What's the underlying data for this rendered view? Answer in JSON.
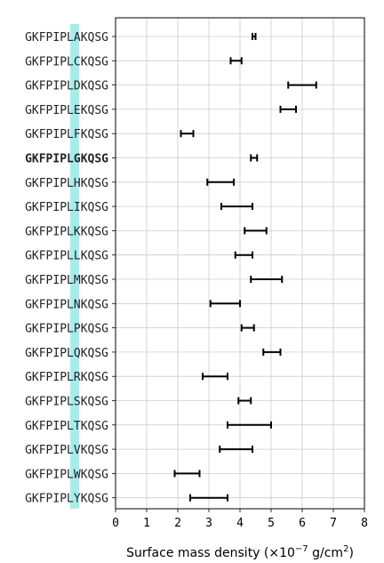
{
  "chart_data": {
    "type": "errorbar",
    "title": "",
    "xlabel": "Surface mass density (×10",
    "xlabel_exp": "−7",
    "xlabel_unit": " g/cm",
    "xlabel_unit_exp": "2",
    "xlabel_close": ")",
    "xlim": [
      0,
      8
    ],
    "xticks": [
      0,
      1,
      2,
      3,
      4,
      5,
      6,
      7,
      8
    ],
    "grid": true,
    "highlight": "GKFPIPLGKQSG",
    "highlight_color": "#a8ecea",
    "bar_color": "#000000",
    "grid_color": "#cccccc",
    "categories": [
      "GKFPIPLAKQSG",
      "GKFPIPLCKQSG",
      "GKFPIPLDKQSG",
      "GKFPIPLEKQSG",
      "GKFPIPLFKQSG",
      "GKFPIPLGKQSG",
      "GKFPIPLHKQSG",
      "GKFPIPLIKQSG",
      "GKFPIPLKKQSG",
      "GKFPIPLLKQSG",
      "GKFPIPLMKQSG",
      "GKFPIPLNKQSG",
      "GKFPIPLPKQSG",
      "GKFPIPLQKQSG",
      "GKFPIPLRKQSG",
      "GKFPIPLSKQSG",
      "GKFPIPLTKQSG",
      "GKFPIPLVKQSG",
      "GKFPIPLWKQSG",
      "GKFPIPLYKQSG"
    ],
    "ranges": [
      [
        4.4,
        4.5
      ],
      [
        3.7,
        4.05
      ],
      [
        5.55,
        6.45
      ],
      [
        5.3,
        5.8
      ],
      [
        2.1,
        2.5
      ],
      [
        4.35,
        4.55
      ],
      [
        2.95,
        3.8
      ],
      [
        3.4,
        4.4
      ],
      [
        4.15,
        4.85
      ],
      [
        3.85,
        4.4
      ],
      [
        4.35,
        5.35
      ],
      [
        3.05,
        4.0
      ],
      [
        4.05,
        4.45
      ],
      [
        4.75,
        5.3
      ],
      [
        2.8,
        3.6
      ],
      [
        3.95,
        4.35
      ],
      [
        3.6,
        5.0
      ],
      [
        3.35,
        4.4
      ],
      [
        1.9,
        2.7
      ],
      [
        2.4,
        3.6
      ]
    ]
  }
}
